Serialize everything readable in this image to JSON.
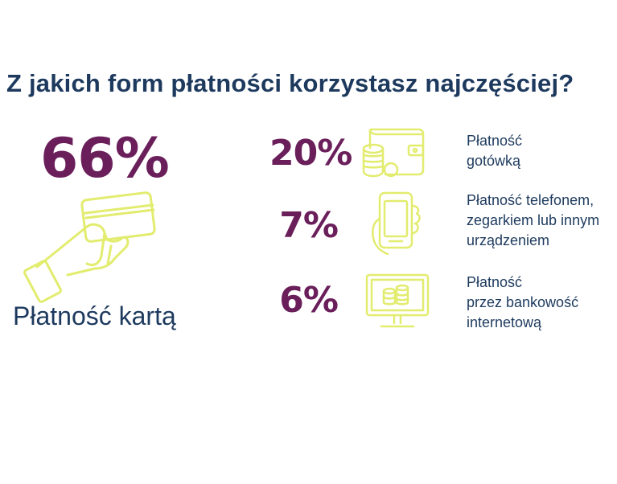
{
  "title": "Z jakich form płatności korzystasz najczęściej?",
  "main": {
    "value": "66%",
    "label": "Płatność kartą",
    "icon": "hand-card-icon"
  },
  "items": [
    {
      "value": "20%",
      "lines": [
        "Płatność",
        "gotówką"
      ],
      "icon": "wallet-coins-icon"
    },
    {
      "value": "7%",
      "lines": [
        "Płatność telefonem,",
        "zegarkiem lub innym",
        "urządzeniem"
      ],
      "icon": "phone-hand-icon"
    },
    {
      "value": "6%",
      "lines": [
        "Płatność",
        "przez bankowość",
        "internetową"
      ],
      "icon": "monitor-coins-icon"
    }
  ],
  "colors": {
    "title": "#1d3a5e",
    "value": "#6a1f5b",
    "icon": "#e2ec6e"
  },
  "chart_data": {
    "type": "table",
    "title": "Z jakich form płatności korzystasz najczęściej?",
    "categories": [
      "Płatność kartą",
      "Płatność gotówką",
      "Płatność telefonem, zegarkiem lub innym urządzeniem",
      "Płatność przez bankowość internetową"
    ],
    "values": [
      66,
      20,
      7,
      6
    ],
    "unit": "%"
  }
}
